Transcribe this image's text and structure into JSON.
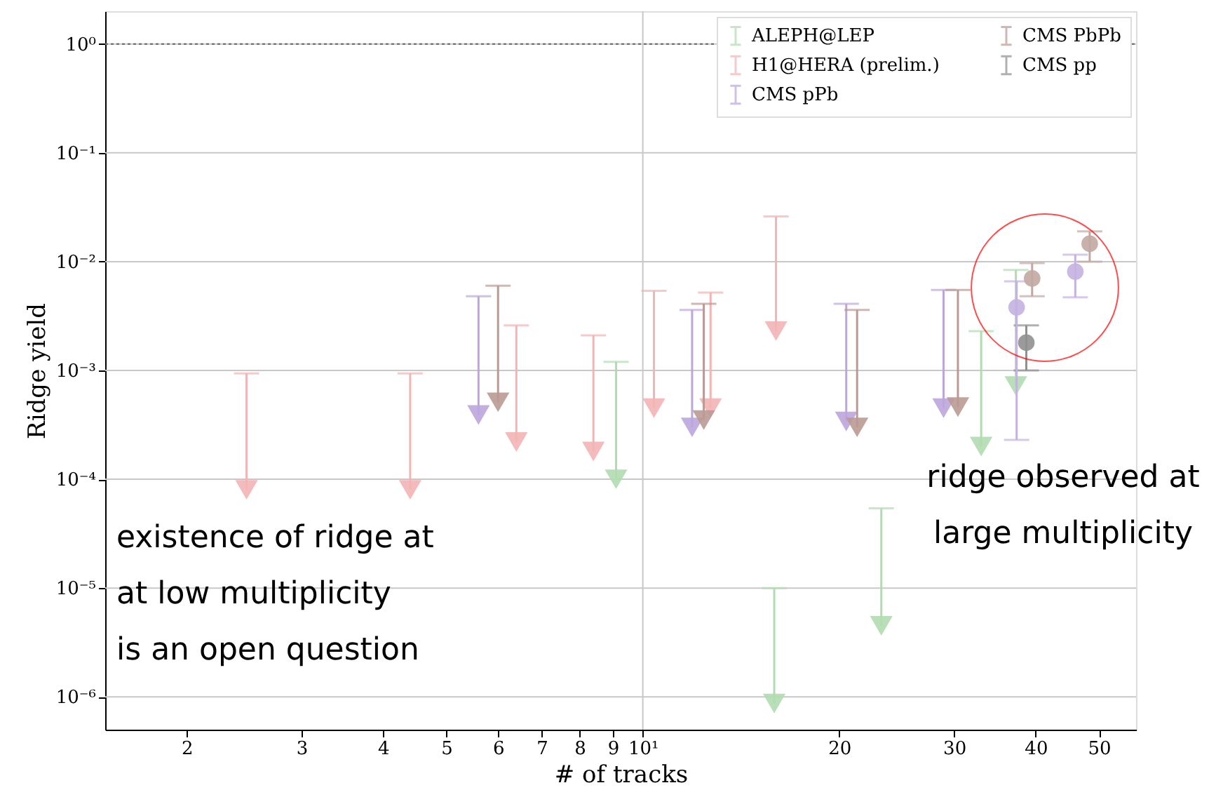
{
  "chart_data": {
    "type": "scatter",
    "xlabel": "# of tracks",
    "ylabel": "Ridge yield",
    "log": "xy",
    "grid": true,
    "legend": "top right",
    "xlim": [
      1.5,
      57
    ],
    "ylim": [
      5e-07,
      2
    ],
    "xticks": [
      2,
      3,
      4,
      5,
      6,
      7,
      8,
      9,
      {
        "value": 10,
        "label": "10¹"
      },
      20,
      30,
      40,
      50
    ],
    "yticks": [
      {
        "value": 1e-06,
        "label": "10⁻⁶"
      },
      {
        "value": 1e-05,
        "label": "10⁻⁵"
      },
      {
        "value": 0.0001,
        "label": "10⁻⁴"
      },
      {
        "value": 0.001,
        "label": "10⁻³"
      },
      {
        "value": 0.01,
        "label": "10⁻²"
      },
      {
        "value": 0.1,
        "label": "10⁻¹"
      },
      {
        "value": 1,
        "label": "10⁰"
      }
    ],
    "ref_lines": [
      {
        "axis": "y",
        "value": 1,
        "color": "#666666",
        "line_style": "dotted"
      }
    ],
    "annotations": [
      "existence of ridge at\nat low multiplicity\nis an open question",
      "ridge observed at\nlarge multiplicity"
    ],
    "series": [
      {
        "name": "ALEPH@LEP",
        "color": "#b0dcb0",
        "marker": "triangle",
        "x": [
          9.1,
          15.9,
          23.2,
          33,
          37.3
        ],
        "values": [
          0.0001,
          8.7e-07,
          4.5e-06,
          0.0002,
          0.00072
        ],
        "errors": [
          [
            0.0001,
            0.0012
          ],
          [
            8.7e-07,
            1e-05
          ],
          [
            4.5e-06,
            5.4e-05
          ],
          [
            0.0002,
            0.0023
          ],
          [
            0.00072,
            0.0084
          ]
        ]
      },
      {
        "name": "H1@HERA (prelim.)",
        "color": "#f2b4b4",
        "marker": "triangle",
        "x": [
          2.47,
          4.4,
          6.4,
          8.4,
          10.4,
          12.7,
          16.0
        ],
        "values": [
          8e-05,
          8e-05,
          0.00022,
          0.00018,
          0.00045,
          0.00045,
          0.0023
        ],
        "errors": [
          [
            8e-05,
            0.00094
          ],
          [
            8e-05,
            0.00094
          ],
          [
            0.00022,
            0.0026
          ],
          [
            0.00018,
            0.0021
          ],
          [
            0.00045,
            0.0054
          ],
          [
            0.00045,
            0.0052
          ],
          [
            0.0023,
            0.026
          ]
        ]
      },
      {
        "name": "CMS pPb",
        "color": "#bca6dc",
        "marker": "triangle",
        "x": [
          5.6,
          11.9,
          20.5,
          28.9
        ],
        "values": [
          0.00039,
          0.0003,
          0.00034,
          0.00045
        ],
        "errors": [
          [
            0.00039,
            0.0048
          ],
          [
            0.0003,
            0.0036
          ],
          [
            0.00034,
            0.0041
          ],
          [
            0.00045,
            0.0055
          ]
        ]
      },
      {
        "name": "CMS PbPb",
        "color": "#bb9a93",
        "marker": "triangle",
        "x": [
          6.0,
          12.4,
          21.3,
          30.4
        ],
        "values": [
          0.00051,
          0.00035,
          0.0003,
          0.00046
        ],
        "errors": [
          [
            0.00051,
            0.006
          ],
          [
            0.00035,
            0.0041
          ],
          [
            0.0003,
            0.0036
          ],
          [
            0.00046,
            0.0055
          ]
        ]
      },
      {
        "name": "CMS pp",
        "color": "#909090",
        "marker": "circle",
        "x": [
          38.7
        ],
        "values": [
          0.0018
        ],
        "errors": [
          [
            0.001,
            0.0026
          ]
        ]
      },
      {
        "color": "#c4b2e0",
        "marker": "circle",
        "x": [
          37.4,
          46
        ],
        "values": [
          0.0038,
          0.0081
        ],
        "errors": [
          [
            0.00023,
            0.0066
          ],
          [
            0.0047,
            0.0116
          ]
        ]
      },
      {
        "color": "#c2a8a2",
        "marker": "circle",
        "x": [
          39.5,
          48.4
        ],
        "values": [
          0.007,
          0.0146
        ],
        "errors": [
          [
            0.0048,
            0.0097
          ],
          [
            0.01,
            0.019
          ]
        ]
      }
    ]
  }
}
